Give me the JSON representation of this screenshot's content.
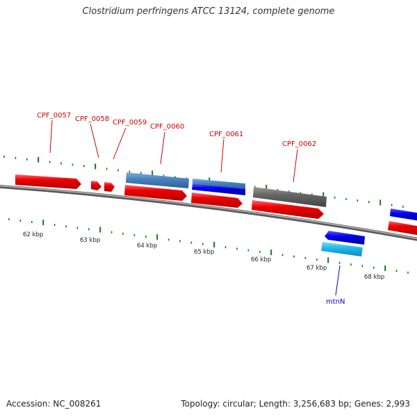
{
  "title": "Clostridium perfringens ATCC 13124, complete genome",
  "footer": {
    "accession": "Accession: NC_008261",
    "summary": "Topology: circular; Length: 3,256,683 bp; Genes: 2,993"
  },
  "gene_labels": [
    "CPF_0057",
    "CPF_0058",
    "CPF_0059",
    "CPF_0060",
    "CPF_0061",
    "CPF_0062",
    "mtnN"
  ],
  "kbp_labels": [
    "62 kbp",
    "63 kbp",
    "64 kbp",
    "65 kbp",
    "66 kbp",
    "67 kbp",
    "68 kbp"
  ],
  "colors": {
    "forward_cds": "#ee0000",
    "forward_feature": "#4a84bf",
    "forward_dark": "#0000ee",
    "gray_feature": "#666666",
    "reverse_cds": "#0000ee",
    "reverse_feature": "#22bbee",
    "tick": "#117711",
    "backbone": "#888888",
    "label_forward": "#cc0000",
    "label_reverse": "#0000bb"
  }
}
